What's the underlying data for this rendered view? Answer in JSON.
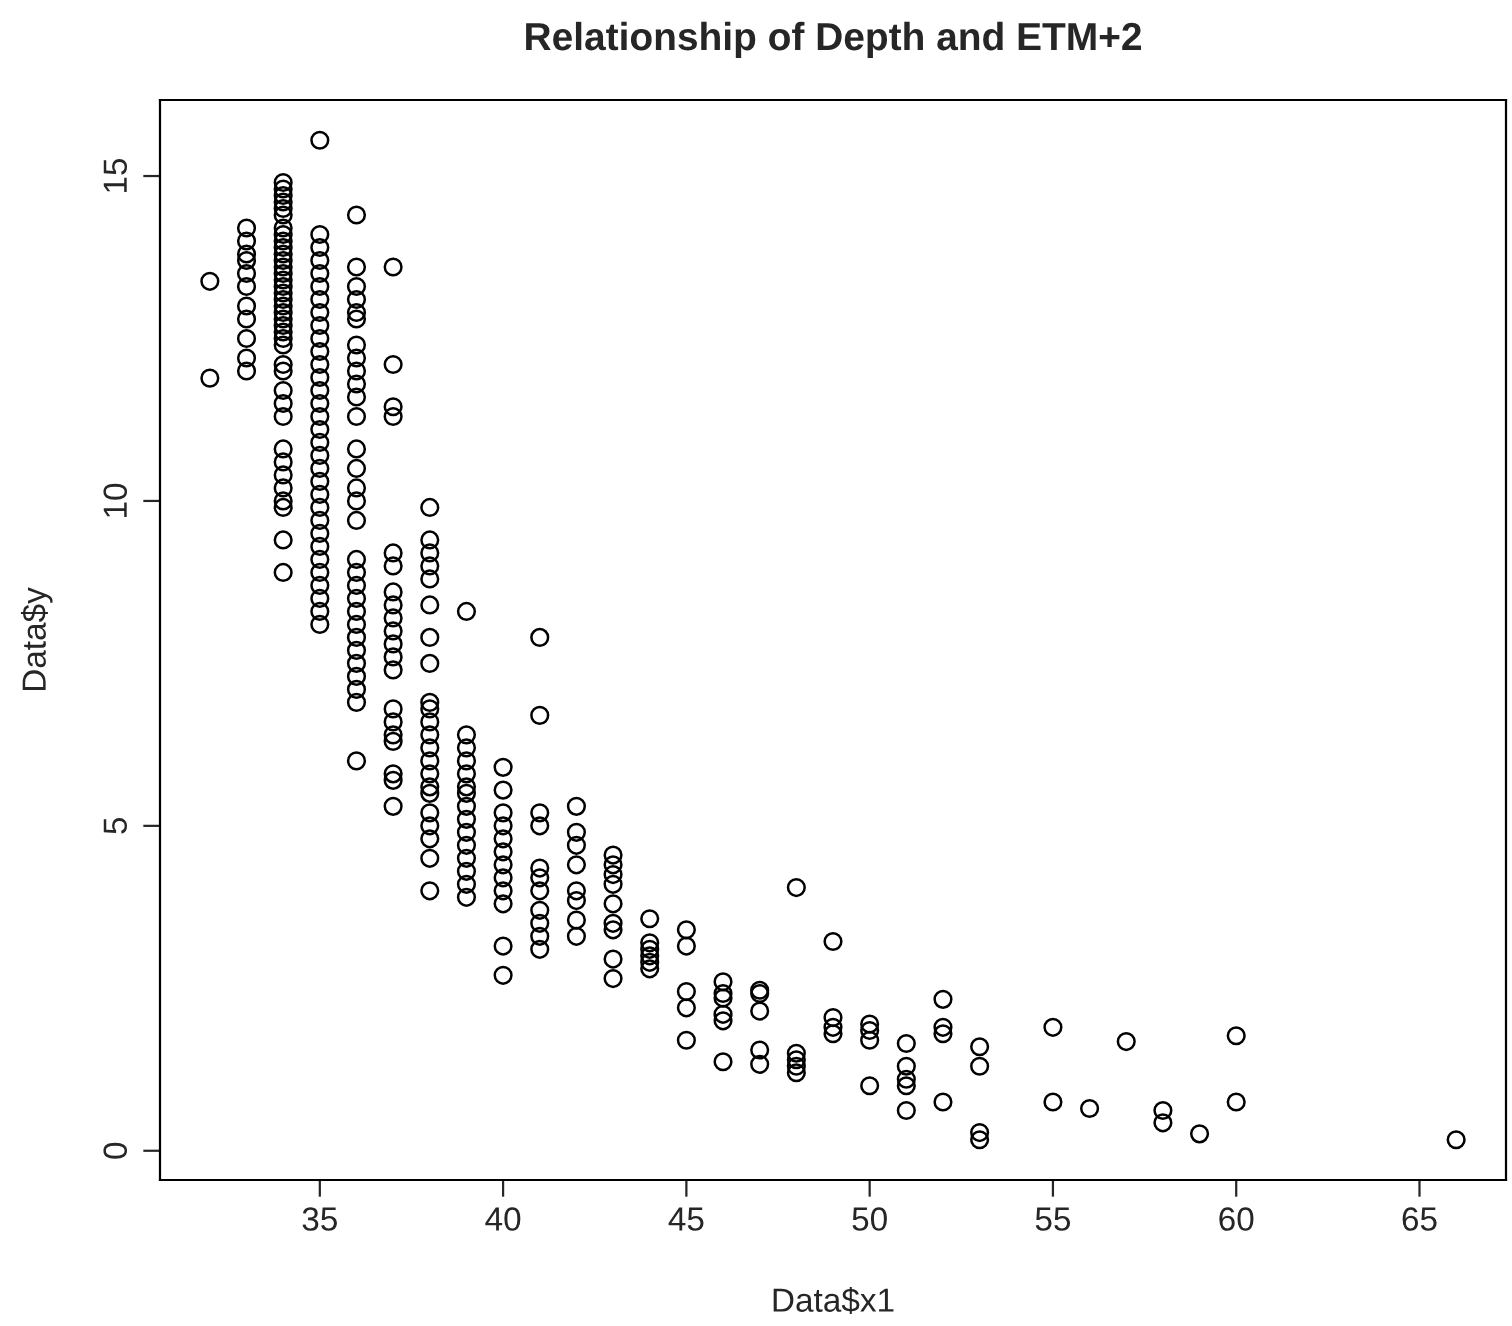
{
  "chart_data": {
    "type": "scatter",
    "title": "Relationship of Depth and ETM+2",
    "xlabel": "Data$x1",
    "ylabel": "Data$y",
    "xlim": [
      30.64,
      67.36
    ],
    "ylim": [
      -0.45,
      16.17
    ],
    "xticks": [
      35,
      40,
      45,
      50,
      55,
      60,
      65
    ],
    "yticks": [
      0,
      5,
      10,
      15
    ],
    "marker": "circle",
    "color": "#000000",
    "grid": false,
    "x": [
      32,
      32,
      33,
      33,
      33,
      33,
      33,
      33,
      33,
      33,
      33,
      33,
      33,
      34,
      34,
      34,
      34,
      34,
      34,
      34,
      34,
      34,
      34,
      34,
      34,
      34,
      34,
      34,
      34,
      34,
      34,
      34,
      34,
      34,
      34,
      34,
      34,
      34,
      34,
      34,
      34,
      34,
      34,
      34,
      34,
      34,
      34,
      34,
      34,
      34,
      34,
      35,
      35,
      35,
      35,
      35,
      35,
      35,
      35,
      35,
      35,
      35,
      35,
      35,
      35,
      35,
      35,
      35,
      35,
      35,
      35,
      35,
      35,
      35,
      35,
      35,
      35,
      35,
      35,
      35,
      35,
      35,
      35,
      36,
      36,
      36,
      36,
      36,
      36,
      36,
      36,
      36,
      36,
      36,
      36,
      36,
      36,
      36,
      36,
      36,
      36,
      36,
      36,
      36,
      36,
      36,
      36,
      36,
      36,
      36,
      36,
      36,
      36,
      37,
      37,
      37,
      37,
      37,
      37,
      37,
      37,
      37,
      37,
      37,
      37,
      37,
      37,
      37,
      37,
      37,
      37,
      37,
      37,
      38,
      38,
      38,
      38,
      38,
      38,
      38,
      38,
      38,
      38,
      38,
      38,
      38,
      38,
      38,
      38,
      38,
      38,
      38,
      38,
      38,
      38,
      39,
      39,
      39,
      39,
      39,
      39,
      39,
      39,
      39,
      39,
      39,
      39,
      39,
      39,
      39,
      40,
      40,
      40,
      40,
      40,
      40,
      40,
      40,
      40,
      40,
      40,
      40,
      41,
      41,
      41,
      41,
      41,
      41,
      41,
      41,
      41,
      41,
      41,
      42,
      42,
      42,
      42,
      42,
      42,
      42,
      42,
      43,
      43,
      43,
      43,
      43,
      43,
      43,
      43,
      43,
      44,
      44,
      44,
      44,
      44,
      44,
      45,
      45,
      45,
      45,
      45,
      46,
      46,
      46,
      46,
      46,
      46,
      47,
      47,
      47,
      47,
      47,
      48,
      48,
      48,
      48,
      48,
      49,
      49,
      49,
      49,
      50,
      50,
      50,
      50,
      51,
      51,
      51,
      51,
      51,
      52,
      52,
      52,
      52,
      53,
      53,
      53,
      53,
      55,
      55,
      56,
      57,
      58,
      58,
      59,
      60,
      60,
      66
    ],
    "values": [
      13.38,
      11.89,
      14.2,
      14.0,
      13.8,
      13.7,
      13.5,
      13.3,
      13.0,
      12.8,
      12.5,
      12.2,
      12.0,
      14.9,
      14.8,
      14.7,
      14.6,
      14.5,
      14.4,
      14.2,
      14.1,
      14.0,
      13.9,
      13.8,
      13.7,
      13.6,
      13.5,
      13.4,
      13.3,
      13.2,
      13.1,
      13.0,
      12.9,
      12.8,
      12.7,
      12.6,
      12.5,
      12.4,
      12.1,
      12.0,
      11.7,
      11.5,
      11.3,
      10.8,
      10.6,
      10.4,
      10.2,
      10.0,
      9.9,
      9.4,
      8.9,
      15.55,
      14.1,
      13.9,
      13.7,
      13.5,
      13.3,
      13.1,
      12.9,
      12.7,
      12.5,
      12.3,
      12.1,
      11.9,
      11.7,
      11.5,
      11.3,
      11.1,
      10.9,
      10.7,
      10.5,
      10.3,
      10.1,
      9.9,
      9.7,
      9.5,
      9.3,
      9.1,
      8.9,
      8.7,
      8.5,
      8.3,
      8.1,
      14.4,
      13.6,
      13.3,
      13.1,
      12.9,
      12.8,
      12.4,
      12.2,
      12.0,
      11.8,
      11.6,
      11.3,
      10.8,
      10.5,
      10.2,
      10.0,
      9.7,
      9.1,
      8.9,
      8.7,
      8.5,
      8.3,
      8.1,
      7.9,
      7.7,
      7.5,
      7.3,
      7.1,
      6.9,
      6.0,
      13.6,
      12.1,
      11.45,
      11.3,
      9.2,
      9.0,
      8.6,
      8.4,
      8.2,
      8.0,
      7.8,
      7.6,
      7.4,
      6.8,
      6.6,
      6.4,
      6.3,
      5.8,
      5.7,
      5.3,
      9.9,
      9.4,
      9.2,
      9.0,
      8.8,
      8.4,
      7.9,
      7.5,
      6.9,
      6.8,
      6.6,
      6.4,
      6.2,
      6.0,
      5.8,
      5.6,
      5.5,
      5.2,
      5.0,
      4.8,
      4.5,
      4.0,
      8.3,
      6.4,
      6.2,
      6.0,
      5.8,
      5.6,
      5.5,
      5.3,
      5.1,
      4.9,
      4.7,
      4.5,
      4.3,
      4.1,
      3.9,
      5.9,
      5.55,
      5.2,
      5.0,
      4.8,
      4.6,
      4.4,
      4.2,
      4.0,
      3.8,
      3.15,
      2.7,
      7.9,
      6.7,
      5.2,
      5.0,
      4.35,
      4.2,
      4.0,
      3.7,
      3.5,
      3.3,
      3.1,
      5.3,
      4.9,
      4.7,
      4.4,
      4.0,
      3.85,
      3.55,
      3.3,
      4.55,
      4.4,
      4.25,
      4.1,
      3.8,
      3.5,
      3.4,
      2.95,
      2.65,
      3.57,
      3.2,
      3.1,
      3.0,
      2.9,
      2.8,
      3.4,
      3.15,
      2.45,
      2.2,
      1.7,
      2.6,
      2.42,
      2.35,
      2.1,
      2.0,
      1.37,
      2.47,
      2.42,
      2.15,
      1.55,
      1.33,
      4.05,
      1.5,
      1.4,
      1.3,
      1.2,
      3.22,
      2.05,
      1.9,
      1.8,
      1.95,
      1.85,
      1.7,
      1.0,
      1.65,
      1.3,
      1.1,
      1.0,
      0.62,
      2.33,
      1.9,
      1.8,
      0.75,
      1.6,
      1.3,
      0.28,
      0.17,
      1.9,
      0.75,
      0.65,
      1.68,
      0.62,
      0.43,
      0.26,
      1.77,
      0.75,
      0.17
    ]
  }
}
